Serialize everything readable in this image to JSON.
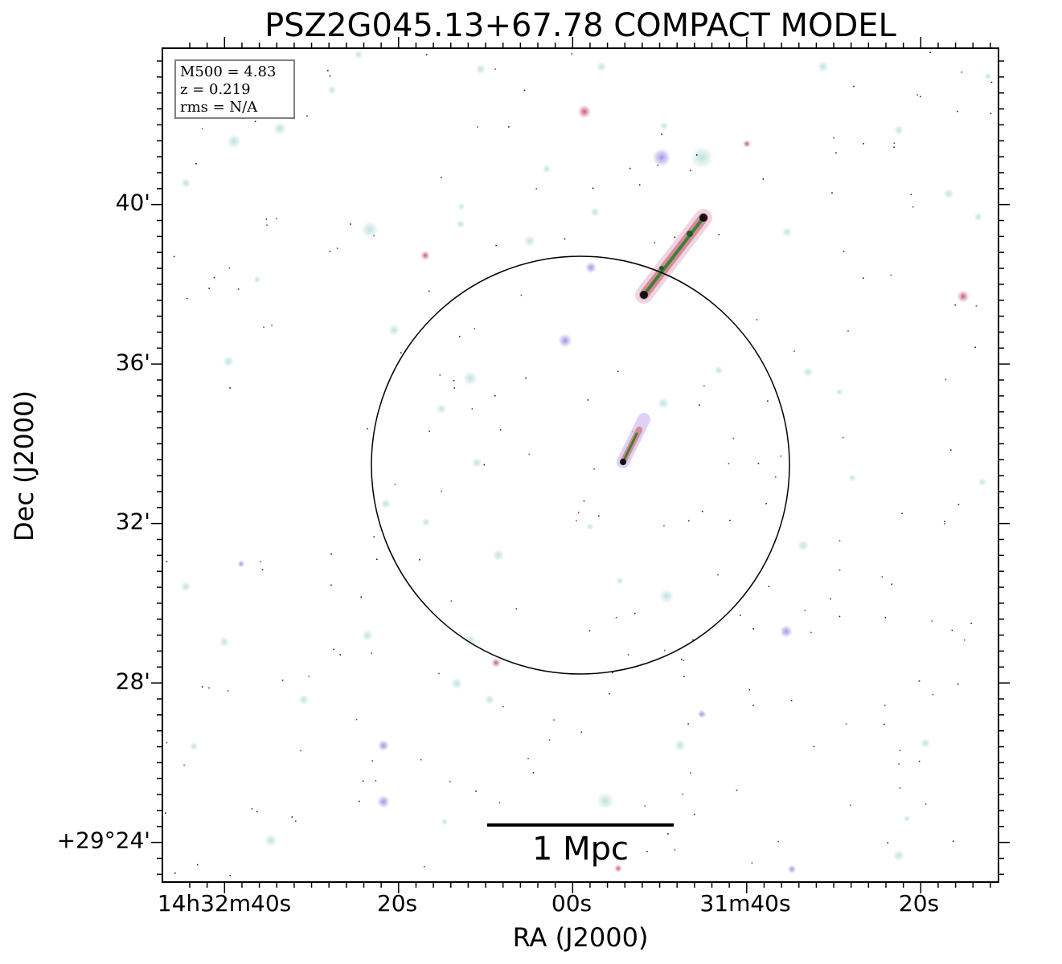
{
  "title": "PSZ2G045.13+67.78 COMPACT MODEL",
  "axes": {
    "xlabel": "RA (J2000)",
    "ylabel": "Dec (J2000)",
    "x_ticks": [
      "14h32m40s",
      "20s",
      "00s",
      "31m40s",
      "20s"
    ],
    "y_ticks": [
      "40'",
      "36'",
      "32'",
      "28'",
      "+29°24'"
    ]
  },
  "info": {
    "mass": "M500 = 4.83",
    "redshift": "z = 0.219",
    "rms": "rms = N/A"
  },
  "scalebar": {
    "label": "1 Mpc"
  },
  "colors": {
    "frame": "#000000",
    "circle": "#000000",
    "source_halo": "#cfe7e6",
    "source_blue": "#b9a5e3",
    "source_red": "#d88a8a",
    "source_green": "#2f7d3a",
    "source_core": "#111111"
  }
}
